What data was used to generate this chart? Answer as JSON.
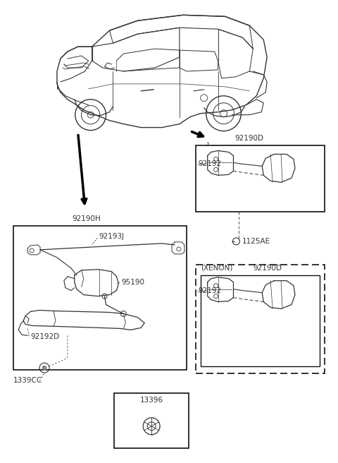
{
  "bg_color": "#ffffff",
  "lc": "#333333",
  "lc_dark": "#111111",
  "fs_label": 7.5,
  "fs_small": 7.0,
  "figsize": [
    4.8,
    6.56
  ],
  "dpi": 100,
  "labels": {
    "92190H": "92190H",
    "92193J": "92193J",
    "95190": "95190",
    "92192D": "92192D",
    "1339CC": "1339CC",
    "13396": "13396",
    "92190D_top": "92190D",
    "92192_top": "92192",
    "1125AE": "1125AE",
    "XENON": "(XENON)",
    "92190D_bot": "92190D",
    "92192_bot": "92192"
  }
}
